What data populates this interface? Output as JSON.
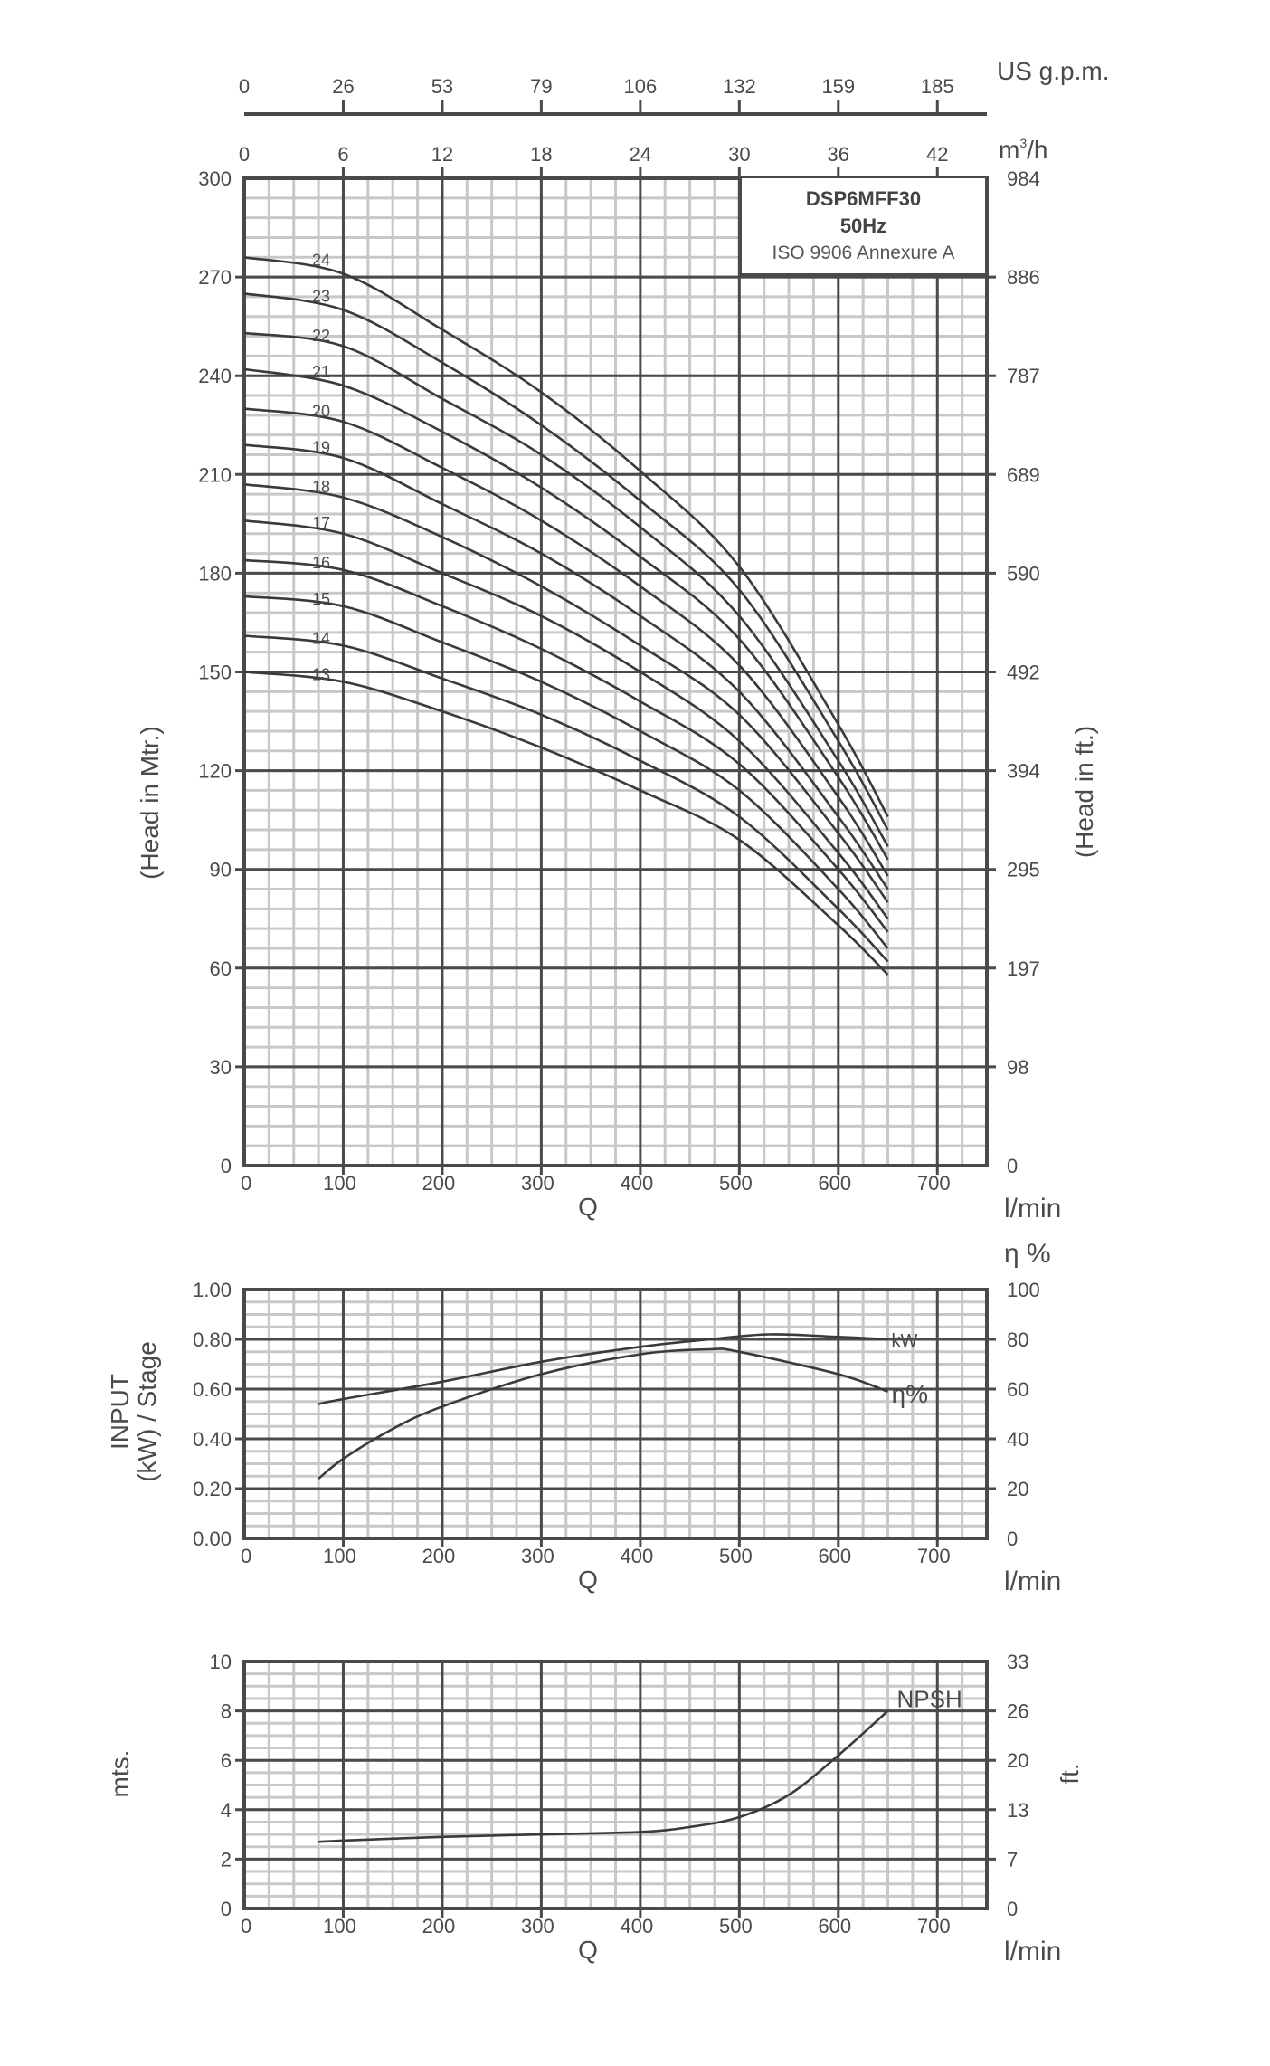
{
  "info_box": {
    "model": "DSP6MFF30",
    "frequency": "50Hz",
    "standard": "ISO 9906 Annexure A"
  },
  "colors": {
    "major_grid": "#4a4a4a",
    "minor_grid": "#c8c8c8",
    "curve": "#3a3a3a",
    "text": "#4a4a4a"
  },
  "top_axes": {
    "gpm": {
      "unit": "US g.p.m.",
      "ticks": [
        "0",
        "26",
        "53",
        "79",
        "106",
        "132",
        "159",
        "185"
      ]
    },
    "m3h": {
      "unit": "m³/h",
      "unit_base": "m",
      "unit_sup": "3",
      "unit_tail": "/h",
      "ticks": [
        "0",
        "6",
        "12",
        "18",
        "24",
        "30",
        "36",
        "42"
      ]
    }
  },
  "chart_data": [
    {
      "type": "line",
      "title": "DSP6MFF30 50Hz ISO 9906 Annexure A",
      "xlabel": "Q",
      "xunit": "l/min",
      "ylabel": "(Head in Mtr.)",
      "ylabel_right": "(Head in ft.)",
      "xlim": [
        0,
        750
      ],
      "ylim": [
        0,
        300
      ],
      "x_ticks": [
        0,
        100,
        200,
        300,
        400,
        500,
        600,
        700
      ],
      "y_ticks": [
        0,
        30,
        60,
        90,
        120,
        150,
        180,
        210,
        240,
        270,
        300
      ],
      "y_ticks_right": [
        "0",
        "98",
        "197",
        "295",
        "394",
        "492",
        "590",
        "689",
        "787",
        "886",
        "984"
      ],
      "grid": true,
      "x": [
        0,
        100,
        200,
        300,
        400,
        500,
        600,
        650
      ],
      "series": [
        {
          "name": "13",
          "values": [
            150,
            147,
            138,
            127,
            114,
            99,
            73,
            58
          ]
        },
        {
          "name": "14",
          "values": [
            161,
            158,
            148,
            137,
            123,
            106,
            78,
            62
          ]
        },
        {
          "name": "15",
          "values": [
            173,
            170,
            159,
            147,
            132,
            114,
            84,
            66
          ]
        },
        {
          "name": "16",
          "values": [
            184,
            181,
            170,
            157,
            141,
            122,
            90,
            71
          ]
        },
        {
          "name": "17",
          "values": [
            196,
            192,
            180,
            167,
            150,
            129,
            95,
            75
          ]
        },
        {
          "name": "18",
          "values": [
            207,
            203,
            191,
            176,
            158,
            137,
            101,
            80
          ]
        },
        {
          "name": "19",
          "values": [
            219,
            215,
            201,
            186,
            167,
            144,
            106,
            84
          ]
        },
        {
          "name": "20",
          "values": [
            230,
            226,
            212,
            196,
            176,
            152,
            112,
            88
          ]
        },
        {
          "name": "21",
          "values": [
            242,
            237,
            223,
            206,
            185,
            160,
            118,
            93
          ]
        },
        {
          "name": "22",
          "values": [
            253,
            249,
            233,
            216,
            194,
            167,
            123,
            97
          ]
        },
        {
          "name": "23",
          "values": [
            265,
            260,
            244,
            225,
            202,
            175,
            129,
            102
          ]
        },
        {
          "name": "24",
          "values": [
            276,
            271,
            254,
            235,
            211,
            182,
            134,
            106
          ]
        }
      ]
    },
    {
      "type": "line",
      "title": "",
      "xlabel": "Q",
      "xunit": "l/min",
      "ylabel": "INPUT (kW) / Stage",
      "ylabel_right": "η %",
      "xlim": [
        0,
        750
      ],
      "ylim": [
        0,
        1.0
      ],
      "ylim_right": [
        0,
        100
      ],
      "x_ticks": [
        0,
        100,
        200,
        300,
        400,
        500,
        600,
        700
      ],
      "y_ticks": [
        "0.00",
        "0.20",
        "0.40",
        "0.60",
        "0.80",
        "1.00"
      ],
      "y_ticks_right": [
        "0",
        "20",
        "40",
        "60",
        "80",
        "100"
      ],
      "grid": true,
      "series": [
        {
          "name": "kW",
          "label": "kW",
          "axis": "left",
          "x": [
            75,
            100,
            200,
            300,
            400,
            470,
            530,
            600,
            650
          ],
          "values": [
            0.54,
            0.56,
            0.63,
            0.71,
            0.77,
            0.8,
            0.82,
            0.81,
            0.8
          ]
        },
        {
          "name": "η%",
          "label": "η%",
          "axis": "right",
          "x": [
            75,
            100,
            150,
            200,
            300,
            400,
            470,
            500,
            600,
            650
          ],
          "values": [
            24,
            32,
            44,
            53,
            66,
            74,
            76,
            75,
            66,
            59
          ]
        }
      ]
    },
    {
      "type": "line",
      "title": "",
      "xlabel": "Q",
      "xunit": "l/min",
      "ylabel": "mts.",
      "ylabel_right": "ft.",
      "xlim": [
        0,
        750
      ],
      "ylim": [
        0,
        10
      ],
      "x_ticks": [
        0,
        100,
        200,
        300,
        400,
        500,
        600,
        700
      ],
      "y_ticks": [
        "0",
        "2",
        "4",
        "6",
        "8",
        "10"
      ],
      "y_ticks_right": [
        "0",
        "7",
        "13",
        "20",
        "26",
        "33"
      ],
      "grid": true,
      "series": [
        {
          "name": "NPSH",
          "label": "NPSH",
          "x": [
            75,
            100,
            200,
            300,
            400,
            450,
            500,
            550,
            600,
            650
          ],
          "values": [
            2.7,
            2.75,
            2.9,
            3.0,
            3.1,
            3.3,
            3.7,
            4.6,
            6.2,
            8.0
          ]
        }
      ]
    }
  ]
}
